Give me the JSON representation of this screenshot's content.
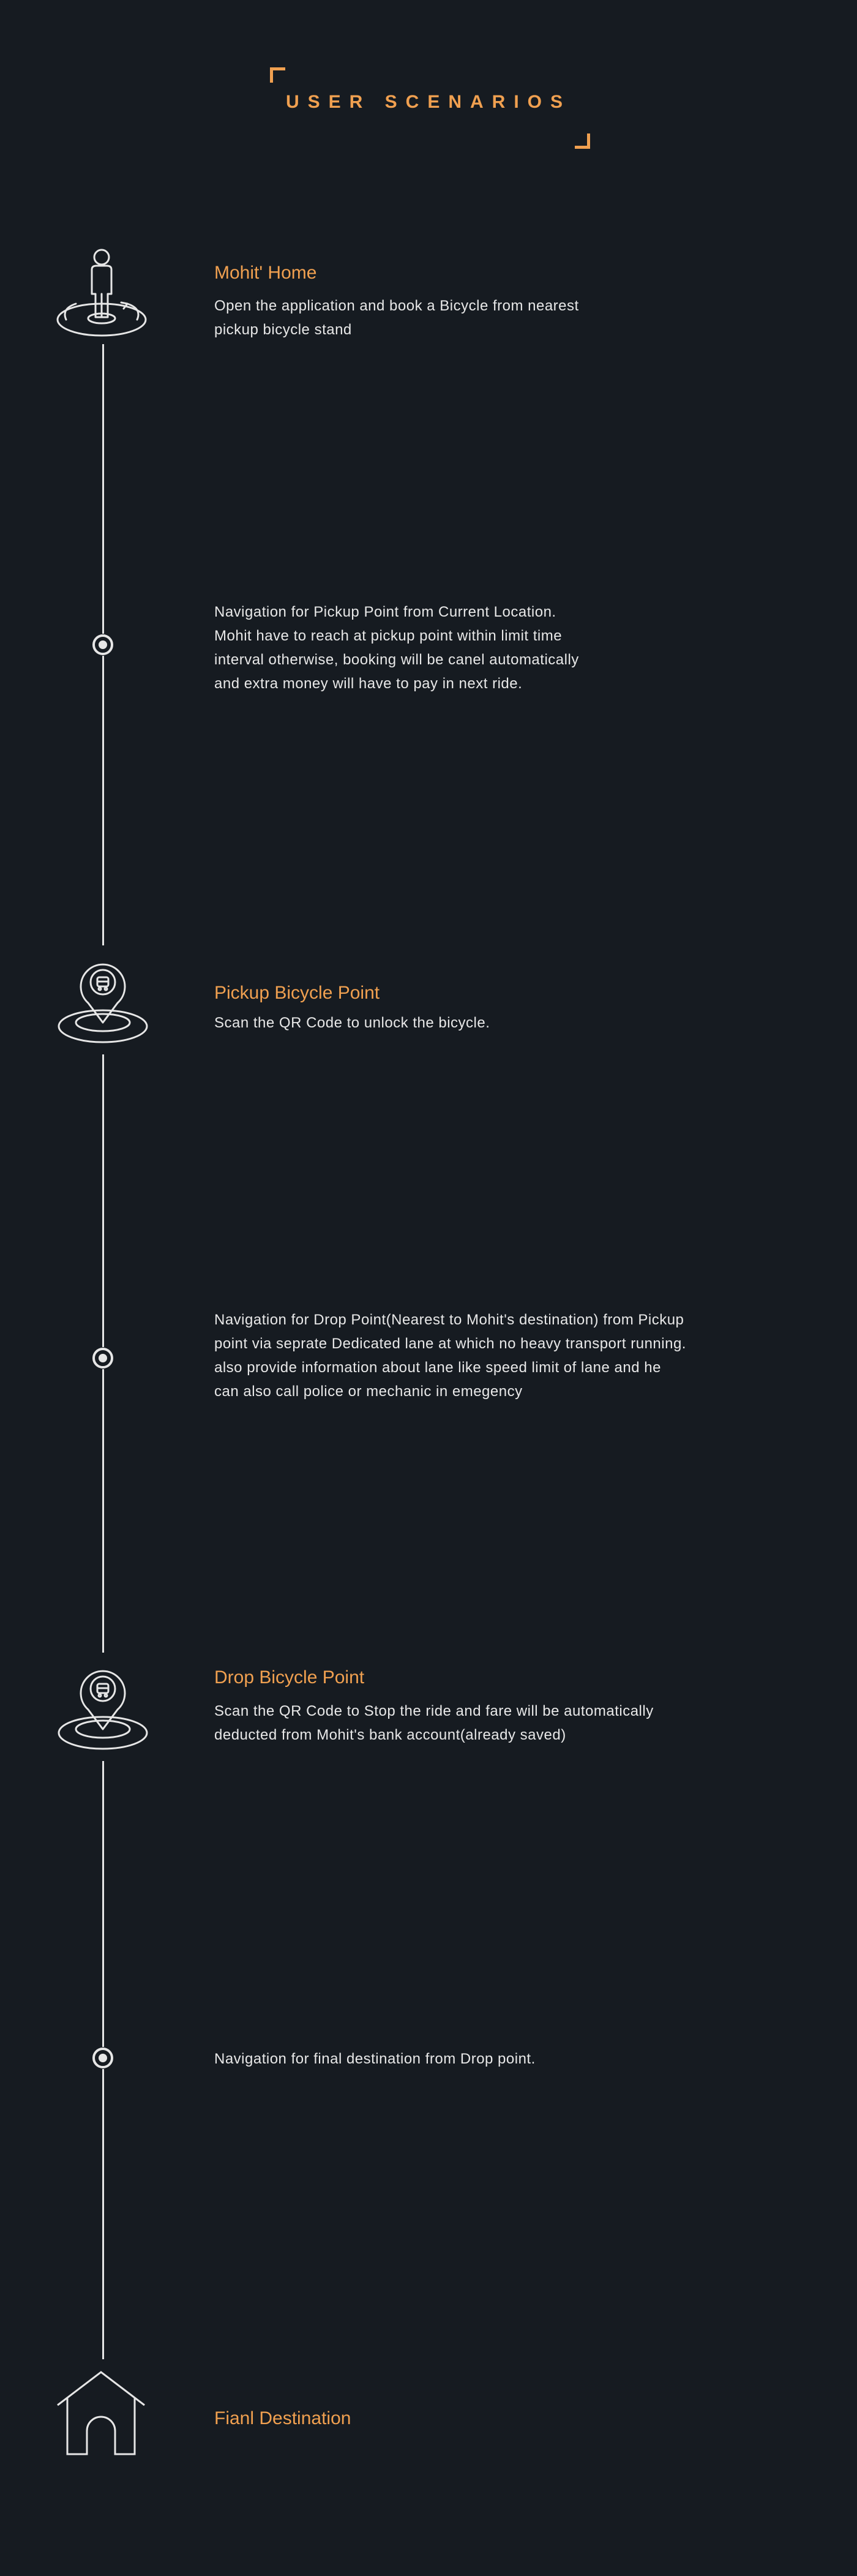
{
  "header": {
    "title": "USER SCENARIOS"
  },
  "colors": {
    "background": "#161b21",
    "accent": "#f0a050",
    "line": "#e6e6e6",
    "text": "#e8e8e8"
  },
  "steps": [
    {
      "icon": "person-on-target-icon",
      "title": "Mohit' Home",
      "description": "Open the application and book a Bicycle from nearest\npickup bicycle stand"
    },
    {
      "icon": "dot-marker-icon",
      "title": "",
      "description": "Navigation for Pickup Point from Current Location.\nMohit have to reach at pickup point within limit time\ninterval otherwise, booking will be canel automatically\nand extra money will have to pay in next ride."
    },
    {
      "icon": "bicycle-map-pin-icon",
      "title": "Pickup Bicycle Point",
      "description": "Scan the QR Code to unlock the bicycle."
    },
    {
      "icon": "dot-marker-icon",
      "title": "",
      "description": "Navigation for Drop Point(Nearest to Mohit's destination) from Pickup\npoint via seprate Dedicated lane at which no heavy transport running.\nalso provide information about lane like speed limit of lane and he\ncan also call police or mechanic in emegency"
    },
    {
      "icon": "bicycle-map-pin-icon",
      "title": "Drop Bicycle Point",
      "description": "Scan the QR Code to Stop the ride and fare will be automatically\ndeducted from Mohit's bank account(already saved)"
    },
    {
      "icon": "dot-marker-icon",
      "title": "",
      "description": "Navigation for final destination from Drop point."
    },
    {
      "icon": "house-icon",
      "title": "Fianl Destination",
      "description": ""
    }
  ]
}
